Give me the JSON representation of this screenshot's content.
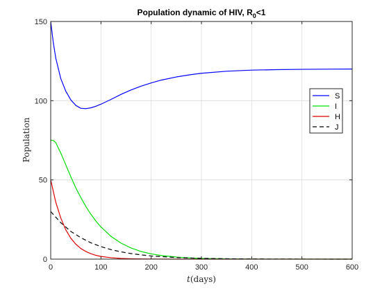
{
  "chart_data": {
    "type": "line",
    "title_main": "Population dynamic of HIV, R",
    "title_sub": "0",
    "title_tail": "<1",
    "xlabel_var": "t",
    "xlabel_unit": "(days)",
    "ylabel": "Population",
    "xlim": [
      0,
      600
    ],
    "ylim": [
      0,
      150
    ],
    "xticks": [
      0,
      100,
      200,
      300,
      400,
      500,
      600
    ],
    "yticks": [
      0,
      50,
      100,
      150
    ],
    "grid": true,
    "legend_position": "right",
    "series": [
      {
        "name": "S",
        "color": "#0000ff",
        "dash": "solid",
        "x": [
          0,
          5,
          10,
          20,
          30,
          40,
          50,
          60,
          70,
          80,
          90,
          100,
          120,
          140,
          160,
          180,
          200,
          220,
          250,
          280,
          300,
          350,
          400,
          450,
          500,
          550,
          600
        ],
        "y": [
          150,
          137,
          127,
          114,
          106,
          100.5,
          97,
          95.2,
          95,
          95.5,
          96.5,
          97.8,
          100.8,
          104,
          106.8,
          109.2,
          111.2,
          113,
          115,
          116.5,
          117.3,
          118.6,
          119.3,
          119.6,
          119.8,
          119.9,
          120
        ]
      },
      {
        "name": "I",
        "color": "#00dd00",
        "dash": "solid",
        "x": [
          0,
          5,
          10,
          20,
          30,
          40,
          50,
          60,
          70,
          80,
          90,
          100,
          120,
          140,
          160,
          180,
          200,
          220,
          250,
          280,
          300,
          350,
          400,
          450,
          500,
          550,
          600
        ],
        "y": [
          75,
          75,
          73.5,
          67,
          59.5,
          52,
          45,
          38.8,
          33.2,
          28.3,
          24,
          20.3,
          14.4,
          10.1,
          7,
          4.8,
          3.3,
          2.3,
          1.3,
          0.7,
          0.45,
          0.15,
          0.05,
          0.02,
          0.01,
          0,
          0
        ]
      },
      {
        "name": "H",
        "color": "#dd0000",
        "dash": "solid",
        "x": [
          0,
          10,
          20,
          30,
          40,
          50,
          60,
          70,
          80,
          90,
          100,
          120,
          140,
          160,
          180,
          200,
          250,
          300,
          400,
          500,
          600
        ],
        "y": [
          50,
          36,
          26,
          18.5,
          13.2,
          9.4,
          6.7,
          4.8,
          3.4,
          2.4,
          1.7,
          0.9,
          0.45,
          0.23,
          0.12,
          0.06,
          0.01,
          0,
          0,
          0,
          0
        ]
      },
      {
        "name": "J",
        "color": "#000000",
        "dash": "dashed",
        "x": [
          0,
          20,
          40,
          60,
          80,
          100,
          120,
          140,
          160,
          180,
          200,
          250,
          300,
          350,
          400,
          500,
          600
        ],
        "y": [
          30,
          23,
          17.5,
          13.5,
          10.3,
          7.9,
          6,
          4.6,
          3.5,
          2.7,
          2,
          1,
          0.5,
          0.25,
          0.12,
          0.03,
          0
        ]
      }
    ]
  }
}
